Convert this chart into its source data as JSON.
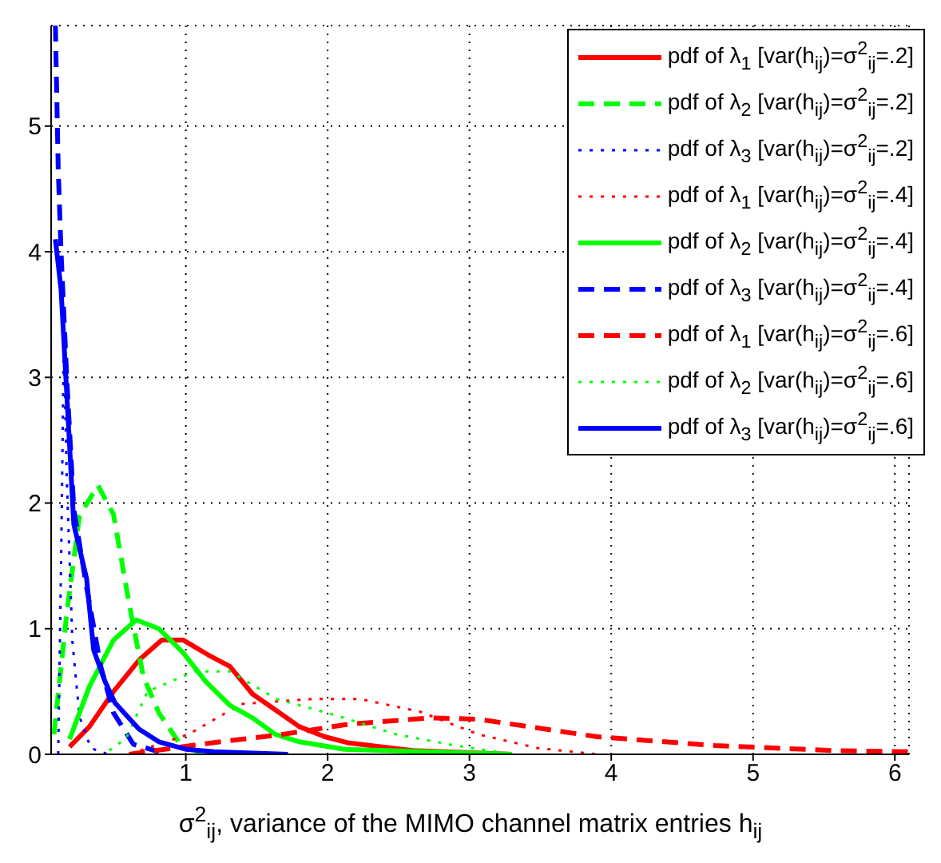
{
  "chart_data": {
    "type": "line",
    "xlabel": "σ$^{2}$$_{ij}$, variance of the MIMO channel matrix entries h$_{ij}$",
    "xlim": [
      0.05,
      6.1
    ],
    "xticks": [
      1,
      2,
      3,
      4,
      5,
      6
    ],
    "ylim": [
      0,
      5.8
    ],
    "yticks": [
      0,
      1,
      2,
      3,
      4,
      5
    ],
    "grid": true,
    "legend": "top right",
    "marker": "none",
    "series": [
      {
        "name": "pdf of λ$_{1}$ [var(h$_{ij}$)=σ$^{2}$$_{ij}$=.2]",
        "color": "#ff0000",
        "line_style": "solid",
        "x": [
          0.18,
          0.32,
          0.49,
          0.67,
          0.83,
          0.98,
          1.16,
          1.31,
          1.47,
          1.61,
          1.8,
          1.98,
          2.15,
          2.6,
          3.3
        ],
        "values": [
          0.06,
          0.22,
          0.5,
          0.75,
          0.91,
          0.91,
          0.79,
          0.7,
          0.48,
          0.37,
          0.22,
          0.14,
          0.09,
          0.03,
          0
        ]
      },
      {
        "name": "pdf of λ$_{2}$ [var(h$_{ij}$)=σ$^{2}$$_{ij}$=.2]",
        "color": "#00ff00",
        "line_style": "dashed",
        "x": [
          0.07,
          0.16,
          0.25,
          0.38,
          0.49,
          0.6,
          0.7,
          0.81,
          0.96,
          1.11
        ],
        "values": [
          0.16,
          1.12,
          1.9,
          2.14,
          1.91,
          1.2,
          0.62,
          0.33,
          0.08,
          0.01
        ]
      },
      {
        "name": "pdf of λ$_{3}$ [var(h$_{ij}$)=σ$^{2}$$_{ij}$=.2]",
        "color": "#0000ff",
        "line_style": "dotted",
        "x": [
          0.1,
          0.12,
          0.14,
          0.16,
          0.2,
          0.25,
          0.33,
          0.45
        ],
        "values": [
          0,
          1.5,
          3.3,
          2.2,
          0.9,
          0.3,
          0.05,
          0
        ]
      },
      {
        "name": "pdf of λ$_{1}$ [var(h$_{ij}$)=σ$^{2}$$_{ij}$=.4]",
        "color": "#ff0000",
        "line_style": "dotted",
        "x": [
          0.68,
          1.02,
          1.39,
          1.89,
          2.23,
          2.65,
          3.06,
          3.48,
          3.9
        ],
        "values": [
          0.03,
          0.16,
          0.4,
          0.44,
          0.44,
          0.34,
          0.16,
          0.05,
          0
        ]
      },
      {
        "name": "pdf of λ$_{2}$ [var(h$_{ij}$)=σ$^{2}$$_{ij}$=.4]",
        "color": "#00ff00",
        "line_style": "solid",
        "x": [
          0.18,
          0.32,
          0.49,
          0.65,
          0.81,
          0.98,
          1.14,
          1.31,
          1.47,
          1.63,
          1.8,
          2.12,
          3.3
        ],
        "values": [
          0.12,
          0.54,
          0.91,
          1.07,
          1.0,
          0.81,
          0.58,
          0.39,
          0.29,
          0.16,
          0.1,
          0.04,
          0
        ]
      },
      {
        "name": "pdf of λ$_{3}$ [var(h$_{ij}$)=σ$^{2}$$_{ij}$=.4]",
        "color": "#0000ff",
        "line_style": "dashed",
        "x": [
          0.08,
          0.1,
          0.12,
          0.16,
          0.21,
          0.3,
          0.4,
          0.49,
          0.63,
          0.81
        ],
        "values": [
          5.8,
          4.66,
          4.0,
          3.0,
          1.95,
          1.33,
          0.7,
          0.33,
          0.08,
          0.02
        ]
      },
      {
        "name": "pdf of λ$_{1}$ [var(h$_{ij}$)=σ$^{2}$$_{ij}$=.6]",
        "color": "#ff0000",
        "line_style": "dashed",
        "x": [
          0.6,
          1.1,
          1.69,
          2.15,
          2.72,
          3.06,
          3.9,
          4.73,
          5.57,
          6.1
        ],
        "values": [
          0,
          0.08,
          0.16,
          0.24,
          0.29,
          0.28,
          0.14,
          0.07,
          0.03,
          0.02
        ]
      },
      {
        "name": "pdf of λ$_{2}$ [var(h$_{ij}$)=σ$^{2}$$_{ij}$=.6]",
        "color": "#00ff00",
        "line_style": "dotted",
        "x": [
          0.46,
          0.58,
          0.73,
          1.06,
          1.31,
          1.64,
          2.06,
          2.48,
          2.9,
          3.31
        ],
        "values": [
          0.03,
          0.13,
          0.5,
          0.66,
          0.66,
          0.44,
          0.31,
          0.16,
          0.07,
          0
        ]
      },
      {
        "name": "pdf of λ$_{3}$ [var(h$_{ij}$)=σ$^{2}$$_{ij}$=.6]",
        "color": "#0000ff",
        "line_style": "solid",
        "x": [
          0.08,
          0.12,
          0.17,
          0.21,
          0.3,
          0.35,
          0.43,
          0.5,
          0.67,
          0.81,
          1.0,
          1.2,
          1.72
        ],
        "values": [
          4.1,
          3.7,
          2.67,
          1.83,
          1.4,
          0.83,
          0.58,
          0.41,
          0.2,
          0.1,
          0.04,
          0.02,
          0
        ]
      }
    ]
  }
}
